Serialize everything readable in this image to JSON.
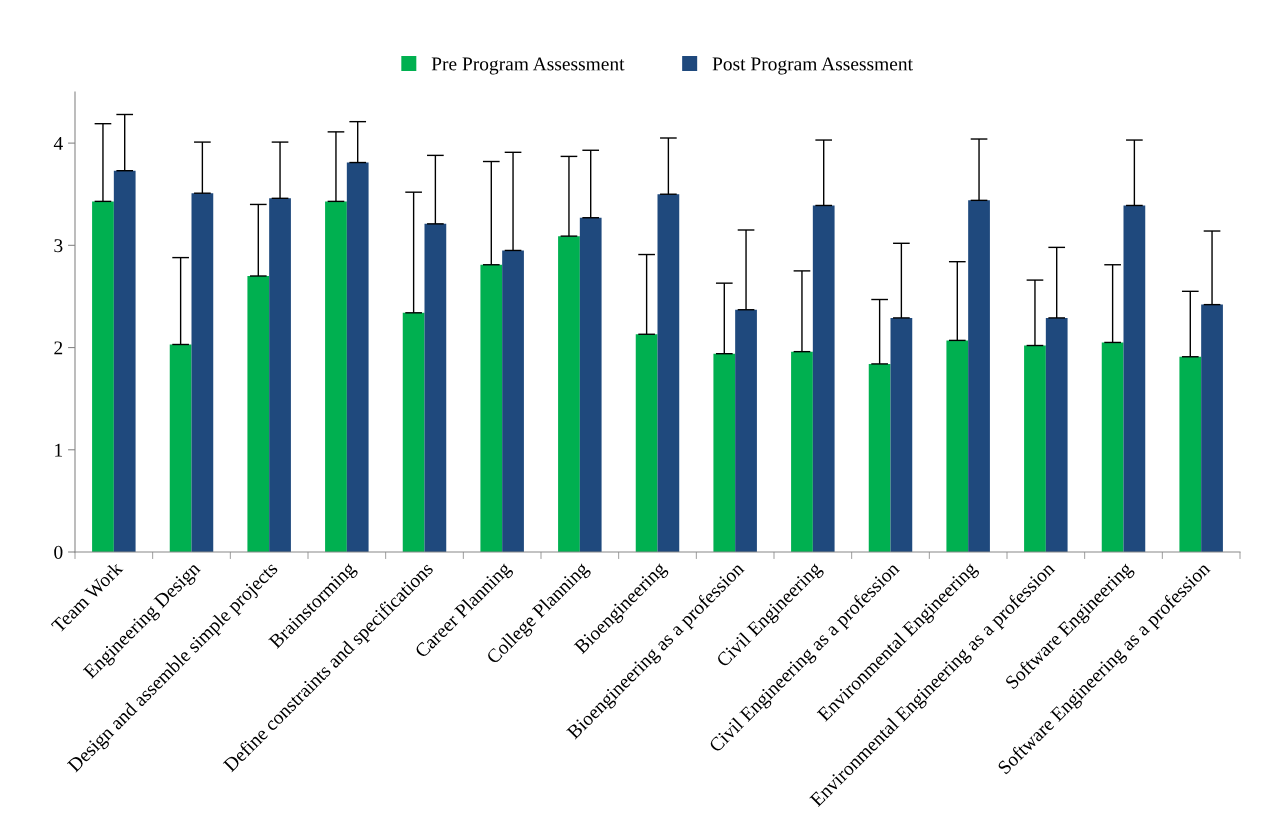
{
  "chart_data": {
    "type": "bar",
    "categories": [
      "Team Work",
      "Engineering Design",
      "Design and assemble simple projects",
      "Brainstorming",
      "Define constraints and specifications",
      "Career Planning",
      "College Planning",
      "Bioengineering",
      "Bioengineering as a profession",
      "Civil Engineering",
      "Civil Engineering as a profession",
      "Environmental Engineering",
      "Environmental Engineering as a profession",
      "Software Engineering",
      "Software Engineering as a profession"
    ],
    "series": [
      {
        "name": "Pre Program Assessment",
        "color": "#00b050",
        "values": [
          3.43,
          2.03,
          2.7,
          3.43,
          2.34,
          2.81,
          3.09,
          2.13,
          1.94,
          1.96,
          1.84,
          2.07,
          2.02,
          2.05,
          1.91
        ],
        "errors": [
          [
            3.43,
            4.19
          ],
          [
            2.03,
            2.88
          ],
          [
            2.7,
            3.4
          ],
          [
            3.43,
            4.11
          ],
          [
            2.34,
            3.52
          ],
          [
            2.81,
            3.82
          ],
          [
            3.09,
            3.87
          ],
          [
            2.13,
            2.91
          ],
          [
            1.94,
            2.63
          ],
          [
            1.96,
            2.75
          ],
          [
            1.84,
            2.47
          ],
          [
            2.07,
            2.84
          ],
          [
            2.02,
            2.66
          ],
          [
            2.05,
            2.81
          ],
          [
            1.91,
            2.55
          ]
        ]
      },
      {
        "name": "Post Program Assessment",
        "color": "#1f497d",
        "values": [
          3.73,
          3.51,
          3.46,
          3.81,
          3.21,
          2.95,
          3.27,
          3.5,
          2.37,
          3.39,
          2.29,
          3.44,
          2.29,
          3.39,
          2.42
        ],
        "errors": [
          [
            3.73,
            4.28
          ],
          [
            3.51,
            4.01
          ],
          [
            3.46,
            4.01
          ],
          [
            3.81,
            4.21
          ],
          [
            3.21,
            3.88
          ],
          [
            2.95,
            3.91
          ],
          [
            3.27,
            3.93
          ],
          [
            3.5,
            4.05
          ],
          [
            2.37,
            3.15
          ],
          [
            3.39,
            4.03
          ],
          [
            2.29,
            3.02
          ],
          [
            3.44,
            4.04
          ],
          [
            2.29,
            2.98
          ],
          [
            3.39,
            4.03
          ],
          [
            2.42,
            3.14
          ]
        ]
      }
    ],
    "ylim": [
      0,
      4.5
    ],
    "yticks": [
      0,
      1,
      2,
      3,
      4
    ],
    "grid": false,
    "legend": "top"
  }
}
